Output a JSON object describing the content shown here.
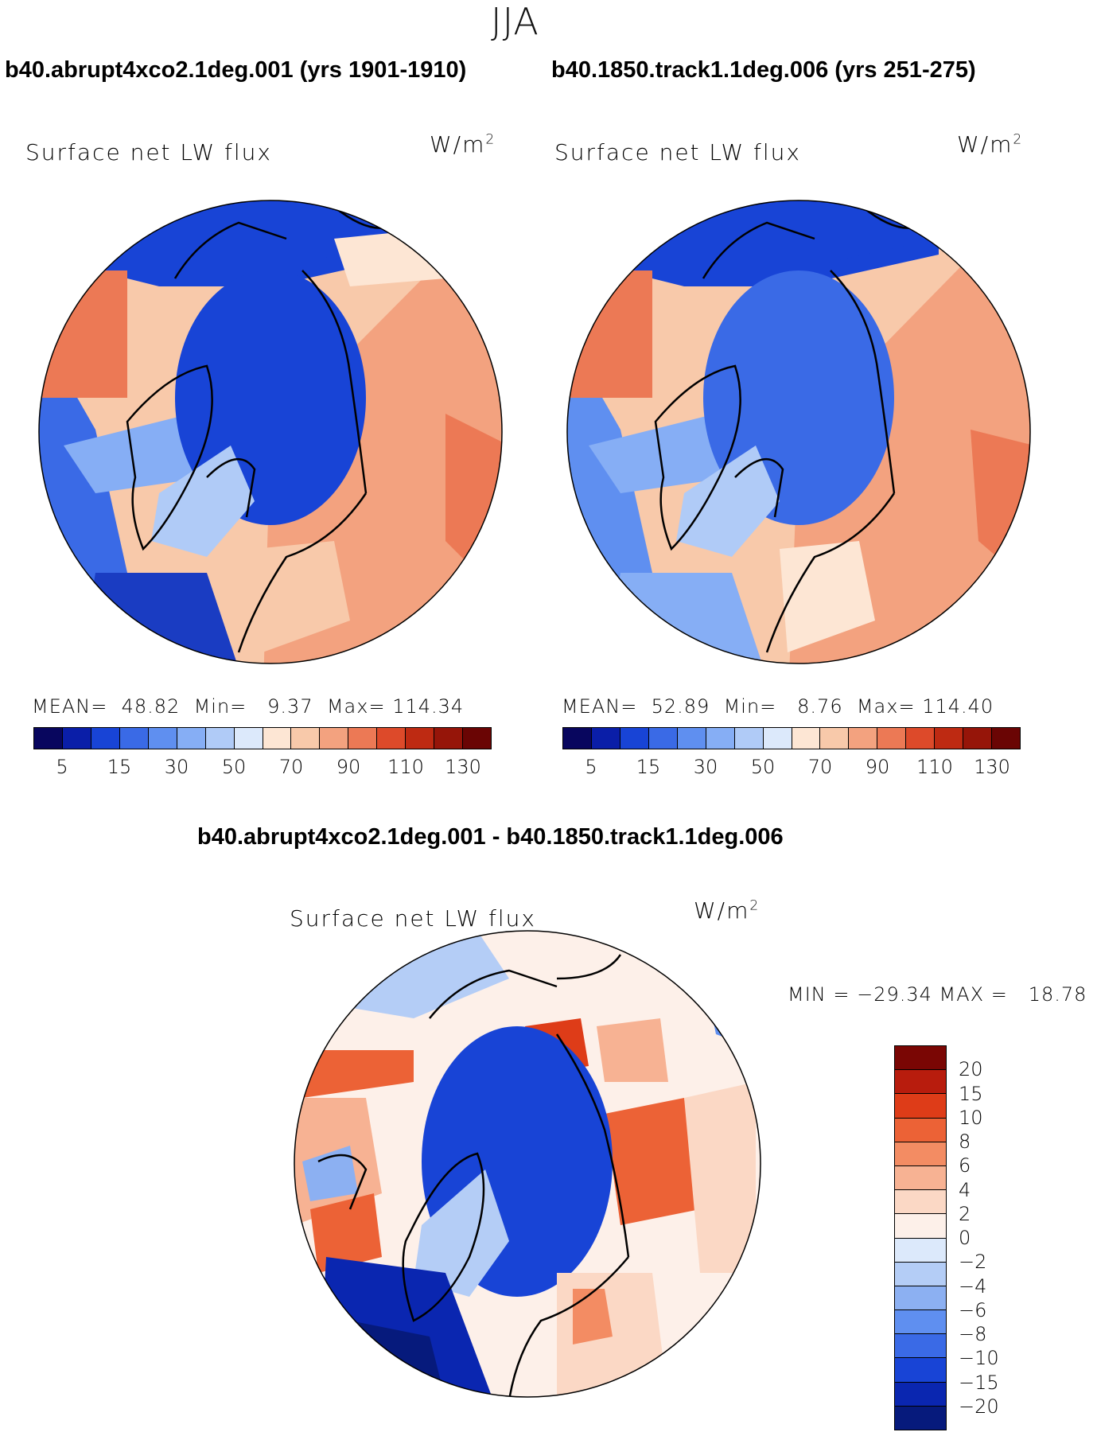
{
  "season": "JJA",
  "panels": [
    {
      "case_title": "b40.abrupt4xco2.1deg.001 (yrs 1901-1910)",
      "variable": "Surface net LW flux",
      "units_base": "W/m",
      "units_exp": "2",
      "stats": "MEAN=  48.82  Min=   9.37  Max= 114.34"
    },
    {
      "case_title": "b40.1850.track1.1deg.006 (yrs 251-275)",
      "variable": "Surface net LW flux",
      "units_base": "W/m",
      "units_exp": "2",
      "stats": "MEAN=  52.89  Min=   8.76  Max= 114.40"
    }
  ],
  "colorbar_top": {
    "ticks": [
      "5",
      "15",
      "30",
      "50",
      "70",
      "90",
      "110",
      "130"
    ],
    "colors": [
      "#08065e",
      "#0a1ea8",
      "#1844d6",
      "#3a6ae6",
      "#5f8ff0",
      "#86aef5",
      "#b0cbf7",
      "#dce9fb",
      "#fde6d4",
      "#f8c9aa",
      "#f3a27f",
      "#ec7955",
      "#dd4a2a",
      "#be2a12",
      "#961509",
      "#6a0504"
    ]
  },
  "difference": {
    "title": "b40.abrupt4xco2.1deg.001 - b40.1850.track1.1deg.006",
    "variable": "Surface net LW flux",
    "units_base": "W/m",
    "units_exp": "2",
    "stats": "MIN = −29.34 MAX =   18.78",
    "colorbar_ticks": [
      "20",
      "15",
      "10",
      "8",
      "6",
      "4",
      "2",
      "0",
      "−2",
      "−4",
      "−6",
      "−8",
      "−10",
      "−15",
      "−20"
    ],
    "colorbar_colors": [
      "#7a0604",
      "#b81c0d",
      "#de3c18",
      "#ec6236",
      "#f38c63",
      "#f7b293",
      "#fbd8c5",
      "#fdf0e9",
      "#dce9fb",
      "#b4cdf6",
      "#8cb0f2",
      "#5f8ff0",
      "#3a6ae6",
      "#1844d6",
      "#0a26b0",
      "#061a7c"
    ]
  },
  "map_colors": {
    "ocean_arctic": "#1a48d8",
    "ocean_mid": "#3a6ae6",
    "light_blue": "#86aef5",
    "pale_blue": "#b0cbf7",
    "pale_orange": "#f8c9aa",
    "orange": "#f3a27f",
    "red": "#ec7955",
    "deep_red": "#dd4a2a",
    "deep_blue": "#0a1ea8"
  }
}
